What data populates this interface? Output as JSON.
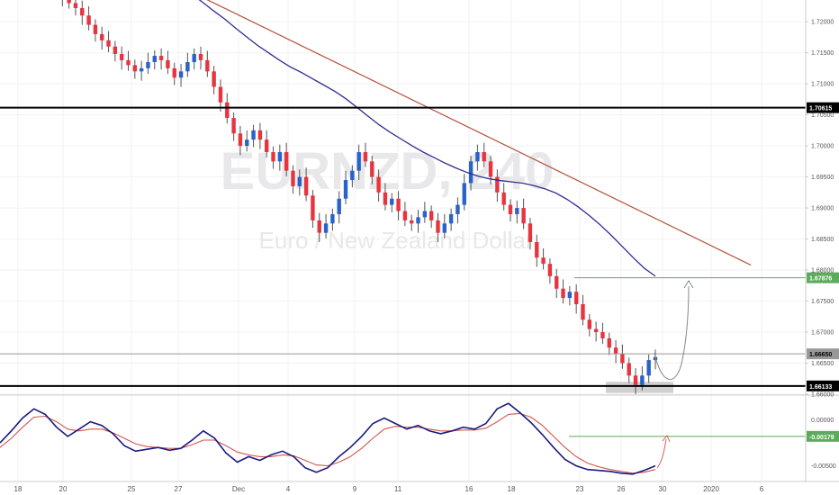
{
  "chart_data": [
    {
      "type": "candlestick",
      "symbol": "EURNZD, 240",
      "name": "Euro / New Zealand Dollar",
      "x_labels": [
        "18",
        "20",
        "25",
        "27",
        "Dec",
        "4",
        "9",
        "11",
        "16",
        "18",
        "23",
        "26",
        "30",
        "2020",
        "6"
      ],
      "y_ticks": [
        "1.72000",
        "1.71500",
        "1.71000",
        "1.70500",
        "1.70000",
        "1.69500",
        "1.69000",
        "1.68500",
        "1.68000",
        "1.67500",
        "1.67000",
        "1.66500",
        "1.66000"
      ],
      "ylim": [
        1.66,
        1.7235
      ],
      "levels": [
        {
          "label": "1.70615",
          "value": 1.70615,
          "color": "#000000",
          "text_color": "#ffffff"
        },
        {
          "label": "1.67876",
          "value": 1.67876,
          "color": "#5cab5c",
          "text_color": "#ffffff"
        },
        {
          "label": "1.66650",
          "value": 1.6665,
          "color": "#999999",
          "text_color": "#000000"
        },
        {
          "label": "1.66133",
          "value": 1.66133,
          "color": "#000000",
          "text_color": "#ffffff"
        }
      ],
      "trendline": {
        "from": [
          0.24,
          1.724
        ],
        "to": [
          0.895,
          1.6808
        ],
        "color": "#b5533c"
      },
      "support_zone": [
        1.6602,
        1.662
      ],
      "close_series": [
        1.7248,
        1.724,
        1.723,
        1.7222,
        1.721,
        1.7195,
        1.718,
        1.717,
        1.716,
        1.7148,
        1.7138,
        1.713,
        1.712,
        1.7125,
        1.7135,
        1.7145,
        1.7138,
        1.7125,
        1.711,
        1.712,
        1.7135,
        1.7148,
        1.7138,
        1.712,
        1.7095,
        1.707,
        1.7045,
        1.702,
        1.7,
        1.701,
        1.7025,
        1.701,
        1.699,
        1.6975,
        1.699,
        1.696,
        1.6935,
        1.695,
        1.692,
        1.688,
        1.686,
        1.6875,
        1.689,
        1.6915,
        1.6945,
        1.696,
        1.699,
        1.6975,
        1.695,
        1.6925,
        1.6905,
        1.6915,
        1.6895,
        1.688,
        1.6875,
        1.6885,
        1.6895,
        1.688,
        1.686,
        1.6875,
        1.689,
        1.6905,
        1.694,
        1.6975,
        1.699,
        1.6975,
        1.695,
        1.6925,
        1.6905,
        1.689,
        1.69,
        1.6875,
        1.6845,
        1.682,
        1.681,
        1.679,
        1.677,
        1.6755,
        1.6765,
        1.6745,
        1.672,
        1.6705,
        1.67,
        1.669,
        1.6675,
        1.6665,
        1.665,
        1.663,
        1.6615,
        1.663,
        1.6655,
        1.666
      ],
      "sma_series": [
        1.7258,
        1.7245,
        1.7232,
        1.7218,
        1.7205,
        1.719,
        1.7176,
        1.7162,
        1.715,
        1.7138,
        1.7127,
        1.7118,
        1.7108,
        1.7098,
        1.7088,
        1.7076,
        1.7062,
        1.7048,
        1.7034,
        1.7022,
        1.7011,
        1.7,
        1.699,
        1.6981,
        1.6972,
        1.6964,
        1.6957,
        1.6951,
        1.6947,
        1.6944,
        1.6942,
        1.694,
        1.6936,
        1.6931,
        1.6924,
        1.6914,
        1.6902,
        1.6888,
        1.6873,
        1.6856,
        1.6838,
        1.682,
        1.6803,
        1.679
      ],
      "oscillator": {
        "y_ticks": [
          "0.00000",
          "-0.00500"
        ],
        "ylim": [
          -0.0067,
          0.0026
        ],
        "level": {
          "label": "-0.00179",
          "value": -0.00179,
          "color": "#5cab5c"
        },
        "main_series": [
          -0.0025,
          -0.0012,
          0.0002,
          0.0012,
          0.0006,
          -0.0008,
          -0.0018,
          -0.001,
          -0.0002,
          -0.0006,
          -0.0015,
          -0.0028,
          -0.0034,
          -0.0032,
          -0.003,
          -0.0033,
          -0.0031,
          -0.0022,
          -0.0012,
          -0.002,
          -0.0036,
          -0.0046,
          -0.004,
          -0.0044,
          -0.0038,
          -0.0034,
          -0.004,
          -0.0052,
          -0.0057,
          -0.0052,
          -0.004,
          -0.003,
          -0.0018,
          -0.0004,
          0.0002,
          -0.0004,
          -0.001,
          -0.0006,
          -0.0012,
          -0.0015,
          -0.0012,
          -0.0008,
          -0.001,
          -0.0004,
          0.0012,
          0.0018,
          0.0008,
          -0.0003,
          -0.0016,
          -0.003,
          -0.0043,
          -0.005,
          -0.0054,
          -0.0055,
          -0.0056,
          -0.0058,
          -0.0059,
          -0.0055,
          -0.005
        ],
        "signal_series": [
          -0.003,
          -0.002,
          -0.0008,
          0.0003,
          0.0004,
          -0.0002,
          -0.001,
          -0.0012,
          -0.001,
          -0.001,
          -0.0014,
          -0.002,
          -0.0026,
          -0.0029,
          -0.003,
          -0.0031,
          -0.0031,
          -0.0027,
          -0.0022,
          -0.0022,
          -0.0028,
          -0.0035,
          -0.0038,
          -0.004,
          -0.004,
          -0.0038,
          -0.0039,
          -0.0044,
          -0.0049,
          -0.005,
          -0.0046,
          -0.004,
          -0.0031,
          -0.002,
          -0.001,
          -0.0007,
          -0.0008,
          -0.0008,
          -0.001,
          -0.0012,
          -0.0012,
          -0.0011,
          -0.0011,
          -0.0009,
          -0.0002,
          0.0006,
          0.0007,
          0.0003,
          -0.0006,
          -0.0018,
          -0.003,
          -0.004,
          -0.0047,
          -0.0051,
          -0.0054,
          -0.0056,
          -0.0058,
          -0.0057,
          -0.0054
        ]
      }
    }
  ],
  "colors": {
    "bull": "#2962c8",
    "bear": "#e8343f",
    "sma": "#2b2f8f",
    "osc_main": "#1a1a80",
    "osc_signal": "#d3564c",
    "grid": "#f2f2f2",
    "axis": "#cccccc",
    "projection": "#888888"
  }
}
